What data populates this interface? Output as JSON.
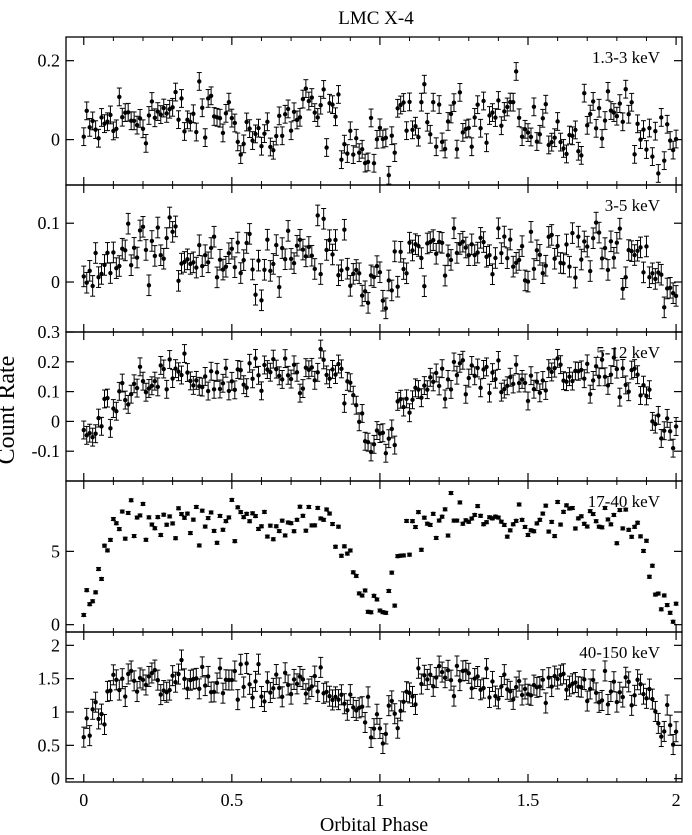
{
  "title": "LMC X-4",
  "xlabel": "Orbital Phase",
  "ylabel": "Count Rate",
  "chart_data": {
    "type": "scatter",
    "error_bars": true,
    "title": "LMC X-4",
    "xlabel": "Orbital Phase",
    "ylabel": "Count Rate",
    "xlim": [
      -0.06,
      2.02
    ],
    "x_ticks": [
      0,
      0.5,
      1,
      1.5,
      2
    ],
    "x_tick_labels": [
      "0",
      "0.5",
      "1",
      "1.5",
      "2"
    ],
    "x_step": 0.01,
    "panels": [
      {
        "label": "1.3-3 keV",
        "ylim": [
          -0.115,
          0.26
        ],
        "y_ticks": [
          0,
          0.2
        ],
        "y_tick_labels": [
          "0",
          "0.2"
        ],
        "model": {
          "x": [
            0,
            0.1,
            0.25,
            0.35,
            0.45,
            0.6,
            0.75,
            0.85,
            0.95,
            1.05,
            1.1,
            1.25,
            1.35,
            1.45,
            1.6,
            1.75,
            1.85,
            1.95,
            2.0
          ],
          "y": [
            0.0,
            0.05,
            0.07,
            0.05,
            0.07,
            0.0,
            0.07,
            0.05,
            -0.04,
            0.0,
            0.05,
            0.07,
            0.05,
            0.07,
            0.0,
            0.07,
            0.05,
            -0.04,
            -0.03
          ]
        },
        "scatter": 0.04,
        "err": 0.045
      },
      {
        "label": "3-5 keV",
        "ylim": [
          -0.085,
          0.165
        ],
        "y_ticks": [
          0,
          0.1
        ],
        "y_tick_labels": [
          "0",
          "0.1"
        ],
        "model": {
          "x": [
            0,
            0.05,
            0.1,
            0.2,
            0.45,
            0.6,
            0.75,
            0.9,
            0.95,
            1.0,
            1.05,
            1.1,
            1.2,
            1.45,
            1.6,
            1.75,
            1.9,
            1.95,
            2.0
          ],
          "y": [
            -0.01,
            0.0,
            0.045,
            0.055,
            0.05,
            0.04,
            0.06,
            0.045,
            0.0,
            -0.03,
            0.0,
            0.045,
            0.055,
            0.05,
            0.04,
            0.06,
            0.045,
            0.0,
            -0.03
          ]
        },
        "scatter": 0.025,
        "err": 0.035
      },
      {
        "label": "5-12 keV",
        "ylim": [
          -0.2,
          0.3
        ],
        "y_ticks": [
          -0.1,
          0,
          0.1,
          0.2,
          0.3
        ],
        "y_tick_labels": [
          "-0.1",
          "0",
          "0.1",
          "0.2",
          "0.3"
        ],
        "model": {
          "x": [
            0,
            0.03,
            0.1,
            0.2,
            0.5,
            0.75,
            0.9,
            0.93,
            0.96,
            1.03,
            1.07,
            1.1,
            1.2,
            1.5,
            1.75,
            1.9,
            1.93,
            1.96,
            2.0
          ],
          "y": [
            -0.06,
            -0.05,
            0.08,
            0.15,
            0.14,
            0.16,
            0.15,
            0.0,
            -0.06,
            -0.05,
            0.04,
            0.1,
            0.15,
            0.14,
            0.16,
            0.15,
            0.0,
            -0.06,
            -0.05
          ]
        },
        "scatter": 0.035,
        "err": 0.06
      },
      {
        "label": "17-40 keV",
        "ylim": [
          -0.5,
          9.8
        ],
        "y_ticks": [
          0,
          5
        ],
        "y_tick_labels": [
          "0",
          "5"
        ],
        "model": {
          "x": [
            0,
            0.03,
            0.05,
            0.08,
            0.12,
            0.25,
            0.5,
            0.75,
            0.85,
            0.9,
            0.92,
            0.95,
            1.0,
            1.03,
            1.05,
            1.08,
            1.12,
            1.25,
            1.5,
            1.75,
            1.85,
            1.9,
            1.92,
            1.95,
            2.0
          ],
          "y": [
            1.0,
            1.2,
            3.0,
            5.8,
            6.8,
            7.2,
            7.0,
            7.2,
            6.5,
            5.0,
            3.5,
            1.2,
            0.6,
            1.2,
            3.0,
            5.8,
            6.8,
            7.2,
            7.0,
            7.2,
            6.5,
            5.0,
            3.5,
            1.2,
            0.6
          ]
        },
        "scatter": 0.7,
        "err": 0.2
      },
      {
        "label": "40-150 keV",
        "ylim": [
          -0.05,
          2.2
        ],
        "y_ticks": [
          0,
          0.5,
          1,
          1.5,
          2
        ],
        "y_tick_labels": [
          "0",
          "0.5",
          "1",
          "1.5",
          "2"
        ],
        "model": {
          "x": [
            0,
            0.05,
            0.1,
            0.2,
            0.5,
            0.8,
            0.9,
            0.95,
            1.0,
            1.05,
            1.1,
            1.2,
            1.5,
            1.8,
            1.9,
            1.95,
            2.0
          ],
          "y": [
            0.7,
            0.9,
            1.25,
            1.5,
            1.4,
            1.35,
            1.2,
            0.9,
            0.65,
            0.9,
            1.25,
            1.5,
            1.4,
            1.35,
            1.2,
            0.9,
            0.65
          ]
        },
        "scatter": 0.15,
        "err": 0.3
      }
    ]
  }
}
